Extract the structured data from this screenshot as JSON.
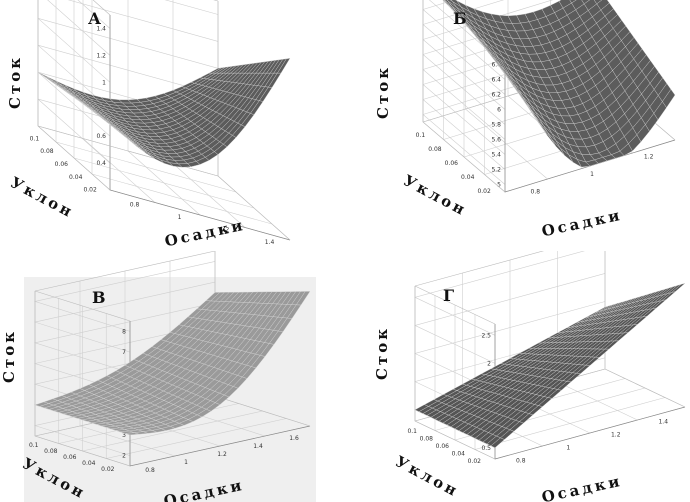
{
  "chart_data": [
    {
      "type": "surface",
      "title": "А",
      "xlabel": "Осадки",
      "ylabel": "Уклон",
      "zlabel": "Сток",
      "x_ticks": [
        "0.8",
        "1",
        "1.2",
        "1.4"
      ],
      "y_ticks": [
        "0.1",
        "0.08",
        "0.06",
        "0.04",
        "0.02"
      ],
      "z_ticks": [
        "0.4",
        "0.6",
        "0.8",
        "1",
        "1.2",
        "1.4"
      ],
      "xlim": [
        0.7,
        1.5
      ],
      "ylim": [
        0.01,
        0.1
      ],
      "zlim": [
        0.2,
        1.5
      ],
      "corners": {
        "low_slope_low_precip": 0.7,
        "high_slope_low_precip": 0.6,
        "low_slope_high_precip": 1.55,
        "high_slope_high_precip": 1.0
      },
      "valley_depth": 0.55,
      "background": "#ffffff",
      "surface_color": "#5c5c5c"
    },
    {
      "type": "surface",
      "title": "Б",
      "xlabel": "Осадки",
      "ylabel": "Уклон",
      "zlabel": "Сток",
      "x_ticks": [
        "0.8",
        "1",
        "1.2"
      ],
      "y_ticks": [
        "0.1",
        "0.08",
        "0.06",
        "0.04",
        "0.02"
      ],
      "z_ticks": [
        "5",
        "5.2",
        "5.4",
        "5.6",
        "5.8",
        "6",
        "6.2",
        "6.4",
        "6.6",
        "6.8"
      ],
      "xlim": [
        0.7,
        1.4
      ],
      "ylim": [
        0.01,
        0.1
      ],
      "zlim": [
        4.9,
        6.9
      ],
      "corners": {
        "low_slope_low_precip": 6.6,
        "high_slope_low_precip": 6.8,
        "low_slope_high_precip": 5.5,
        "high_slope_high_precip": 6.1
      },
      "valley_depth": 1.2,
      "background": "#ffffff",
      "surface_color": "#5c5c5c"
    },
    {
      "type": "surface",
      "title": "В",
      "xlabel": "Осадки",
      "ylabel": "Уклон",
      "zlabel": "Сток",
      "x_ticks": [
        "0.8",
        "1",
        "1.2",
        "1.4",
        "1.6"
      ],
      "y_ticks": [
        "0.1",
        "0.08",
        "0.06",
        "0.04",
        "0.02"
      ],
      "z_ticks": [
        "2",
        "3",
        "4",
        "5",
        "6",
        "7",
        "8"
      ],
      "xlim": [
        0.7,
        1.6
      ],
      "ylim": [
        0.01,
        0.1
      ],
      "zlim": [
        1.5,
        8.5
      ],
      "corners": {
        "low_slope_low_precip": 3.0,
        "high_slope_low_precip": 3.0,
        "low_slope_high_precip": 8.0,
        "high_slope_high_precip": 6.5
      },
      "valley_depth": 2.0,
      "background": "#efefef",
      "surface_color": "#9a9a9a"
    },
    {
      "type": "surface",
      "title": "Г",
      "xlabel": "Осадки",
      "ylabel": "Уклон",
      "zlabel": "Сток",
      "x_ticks": [
        "0.8",
        "1",
        "1.2",
        "1.4"
      ],
      "y_ticks": [
        "0.1",
        "0.08",
        "0.06",
        "0.04",
        "0.02"
      ],
      "z_ticks": [
        "0.5",
        "1",
        "1.5",
        "2",
        "2.5"
      ],
      "xlim": [
        0.7,
        1.5
      ],
      "ylim": [
        0.01,
        0.1
      ],
      "zlim": [
        0.3,
        2.7
      ],
      "corners": {
        "low_slope_low_precip": 0.5,
        "high_slope_low_precip": 0.5,
        "low_slope_high_precip": 2.5,
        "high_slope_high_precip": 1.4
      },
      "valley_depth": 0.0,
      "background": "#ffffff",
      "surface_color": "#555555"
    }
  ]
}
